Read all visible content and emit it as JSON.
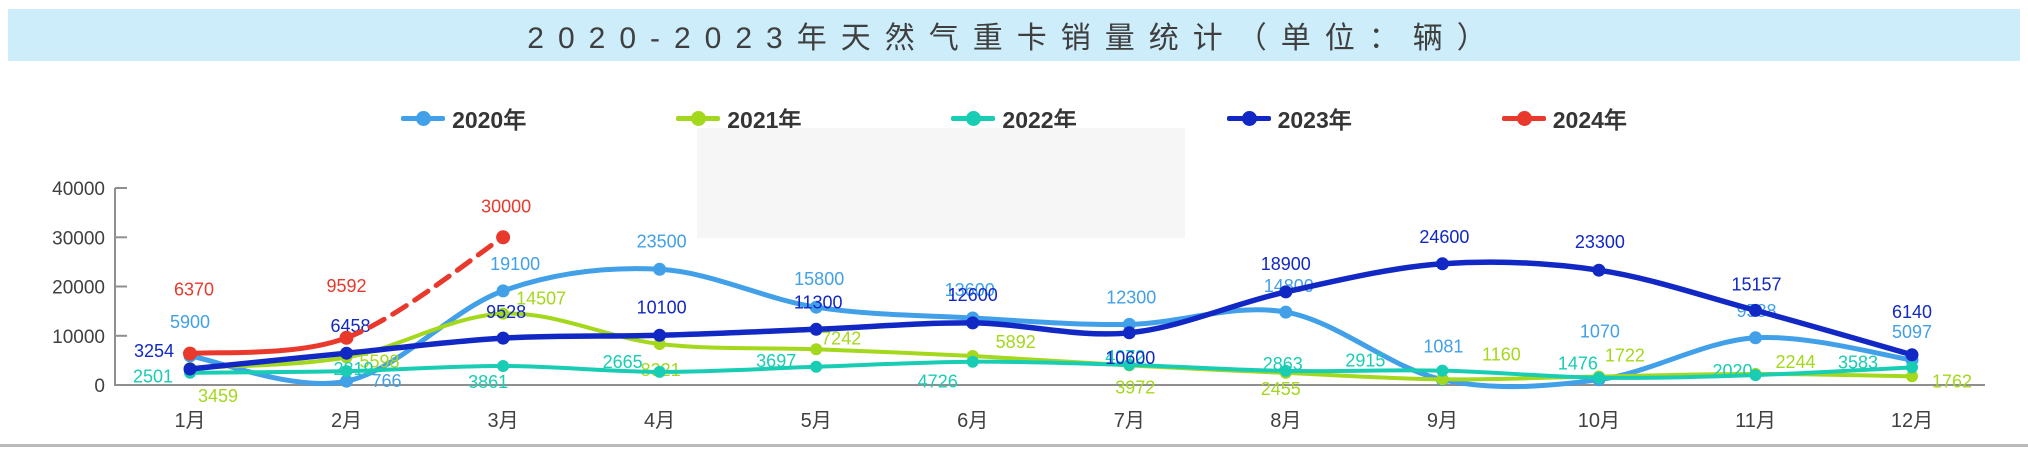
{
  "title_bar": {
    "title": "2020-2023年天然气重卡销量统计（单位：辆）"
  },
  "chart_data": {
    "type": "line",
    "title": "2020-2023年天然气重卡销量统计（单位：辆）",
    "categories": [
      "1月",
      "2月",
      "3月",
      "4月",
      "5月",
      "6月",
      "7月",
      "8月",
      "9月",
      "10月",
      "11月",
      "12月"
    ],
    "xlabel": "",
    "ylabel": "",
    "ylim": [
      0,
      40000
    ],
    "yticks": [
      0,
      10000,
      20000,
      30000,
      40000
    ],
    "grid": false,
    "legend_position": "top",
    "line_style": "smooth",
    "series": [
      {
        "name": "2020年",
        "color": "#41a0e8",
        "values": [
          5900,
          766,
          19100,
          23500,
          15800,
          13600,
          12300,
          14800,
          1081,
          1070,
          9588,
          5097
        ]
      },
      {
        "name": "2021年",
        "color": "#a4d81c",
        "values": [
          3459,
          5598,
          14507,
          8321,
          7242,
          5892,
          3972,
          2455,
          1160,
          1722,
          2244,
          1762
        ]
      },
      {
        "name": "2022年",
        "color": "#19cdb4",
        "values": [
          2501,
          2819,
          3861,
          2665,
          3697,
          4726,
          4072,
          2863,
          2915,
          1476,
          2020,
          3583
        ]
      },
      {
        "name": "2023年",
        "color": "#1228c4",
        "values": [
          3254,
          6458,
          9528,
          10100,
          11300,
          12600,
          10600,
          18900,
          24600,
          23300,
          15157,
          6140
        ]
      },
      {
        "name": "2024年",
        "color": "#e8392c",
        "dashed_from_index": 1,
        "values": [
          6370,
          9592,
          30000
        ]
      }
    ]
  }
}
